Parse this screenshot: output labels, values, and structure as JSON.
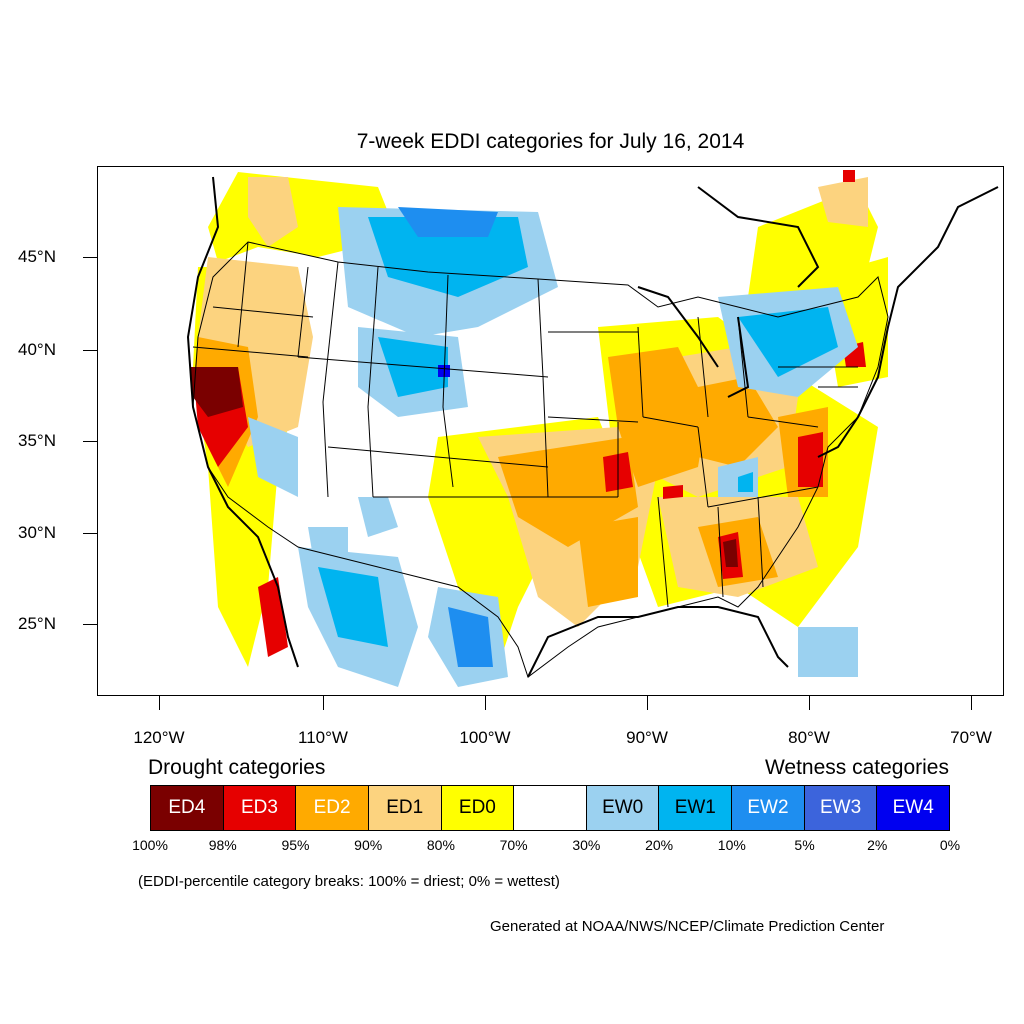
{
  "title": "7-week EDDI categories for July 16, 2014",
  "lat_labels": [
    "45°N",
    "40°N",
    "35°N",
    "30°N",
    "25°N"
  ],
  "lon_labels": [
    "120°W",
    "110°W",
    "100°W",
    "90°W",
    "80°W",
    "70°W"
  ],
  "legend": {
    "drought_heading": "Drought categories",
    "wetness_heading": "Wetness categories",
    "categories": [
      {
        "label": "ED4",
        "color": "#7a0000",
        "text_color": "#ffffff"
      },
      {
        "label": "ED3",
        "color": "#e60000",
        "text_color": "#ffffff"
      },
      {
        "label": "ED2",
        "color": "#ffaa00",
        "text_color": "#ffffff"
      },
      {
        "label": "ED1",
        "color": "#fcd37f",
        "text_color": "#000000"
      },
      {
        "label": "ED0",
        "color": "#ffff00",
        "text_color": "#000000"
      },
      {
        "label": "",
        "color": "#ffffff",
        "text_color": "#000000"
      },
      {
        "label": "EW0",
        "color": "#9bd1f0",
        "text_color": "#000000"
      },
      {
        "label": "EW1",
        "color": "#00b4f0",
        "text_color": "#000000"
      },
      {
        "label": "EW2",
        "color": "#1e8ef0",
        "text_color": "#ffffff"
      },
      {
        "label": "EW3",
        "color": "#3c64dc",
        "text_color": "#ffffff"
      },
      {
        "label": "EW4",
        "color": "#0000f0",
        "text_color": "#ffffff"
      }
    ],
    "breaks": [
      "100%",
      "98%",
      "95%",
      "90%",
      "80%",
      "70%",
      "30%",
      "20%",
      "10%",
      "5%",
      "2%",
      "0%"
    ]
  },
  "note": "(EDDI-percentile category breaks: 100% = driest; 0% = wettest)",
  "credit": "Generated at NOAA/NWS/NCEP/Climate Prediction Center"
}
